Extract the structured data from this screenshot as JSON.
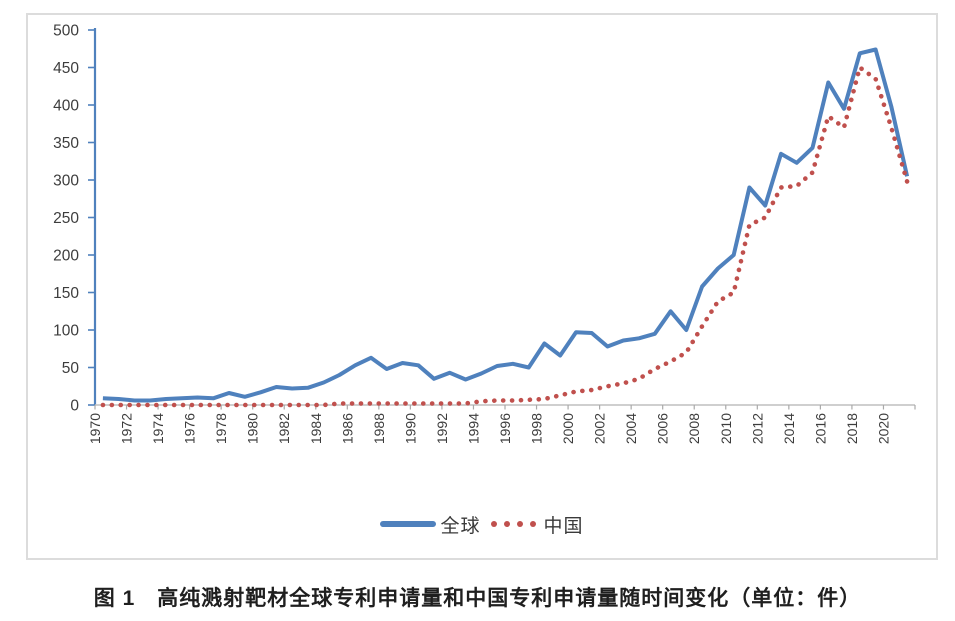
{
  "figure": {
    "caption": "图 1　高纯溅射靶材全球专利申请量和中国专利申请量随时间变化（单位：件）"
  },
  "chart_data": {
    "type": "line",
    "title": "",
    "xlabel": "",
    "ylabel": "",
    "x": [
      1970,
      1971,
      1972,
      1973,
      1974,
      1975,
      1976,
      1977,
      1978,
      1979,
      1980,
      1981,
      1982,
      1983,
      1984,
      1985,
      1986,
      1987,
      1988,
      1989,
      1990,
      1991,
      1992,
      1993,
      1994,
      1995,
      1996,
      1997,
      1998,
      1999,
      2000,
      2001,
      2002,
      2003,
      2004,
      2005,
      2006,
      2007,
      2008,
      2009,
      2010,
      2011,
      2012,
      2013,
      2014,
      2015,
      2016,
      2017,
      2018,
      2019,
      2020,
      2021
    ],
    "series": [
      {
        "key": "global",
        "name": "全球",
        "color": "#4f81bd",
        "style": "solid",
        "values": [
          9,
          8,
          6,
          6,
          8,
          9,
          10,
          9,
          16,
          11,
          17,
          24,
          22,
          23,
          30,
          40,
          53,
          63,
          48,
          56,
          53,
          35,
          43,
          34,
          42,
          52,
          55,
          50,
          82,
          66,
          97,
          96,
          78,
          86,
          89,
          95,
          125,
          100,
          158,
          182,
          200,
          290,
          266,
          335,
          323,
          343,
          430,
          395,
          469,
          474,
          398,
          305
        ]
      },
      {
        "key": "china",
        "name": "中国",
        "color": "#c0504d",
        "style": "dotted",
        "values": [
          0,
          0,
          0,
          0,
          0,
          0,
          0,
          0,
          0,
          0,
          0,
          0,
          0,
          0,
          0,
          2,
          2,
          2,
          2,
          2,
          2,
          2,
          2,
          2,
          5,
          6,
          6,
          7,
          8,
          13,
          18,
          20,
          25,
          29,
          35,
          48,
          58,
          70,
          105,
          138,
          150,
          240,
          250,
          290,
          292,
          310,
          385,
          370,
          450,
          435,
          370,
          298
        ]
      }
    ],
    "ylim": [
      0,
      500
    ],
    "ytick_step": 50,
    "xtick_labels": [
      "1970",
      "1972",
      "1974",
      "1976",
      "1978",
      "1980",
      "1982",
      "1984",
      "1986",
      "1988",
      "1990",
      "1992",
      "1994",
      "1996",
      "1998",
      "2000",
      "2002",
      "2004",
      "2006",
      "2008",
      "2010",
      "2012",
      "2014",
      "2016",
      "2018",
      "2020"
    ],
    "legend_position": "bottom",
    "grid": false,
    "style": {
      "y_axis_color": "#4f81bd",
      "x_axis_color": "#bfbfbf",
      "tick_color": "#a9a9a9",
      "frame_color": "#dcdcdc"
    }
  }
}
